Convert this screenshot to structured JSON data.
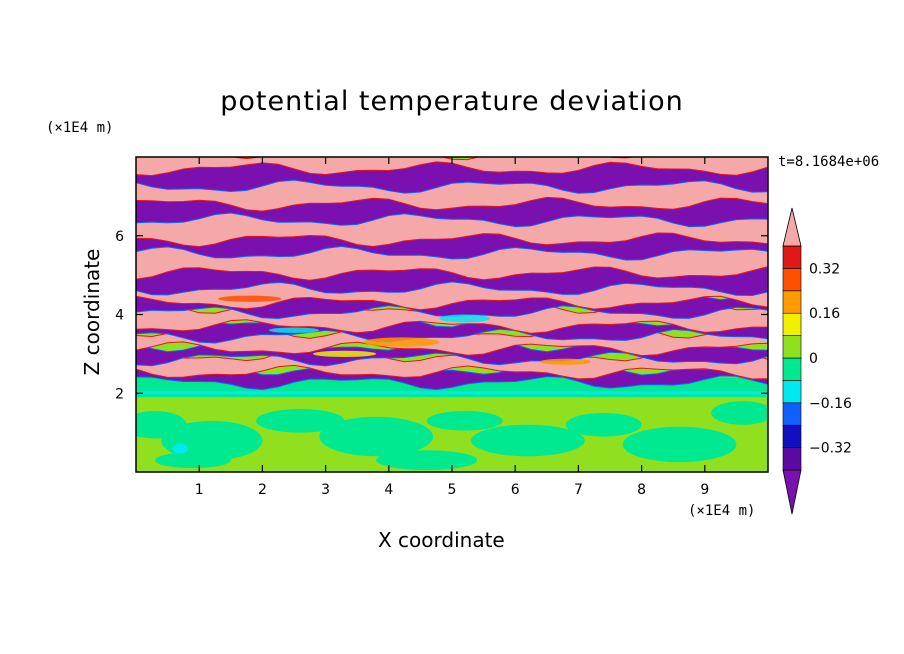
{
  "header": {
    "title": "potential temperature deviation",
    "time_label": "t=8.1684e+06"
  },
  "chart_data": {
    "type": "heatmap",
    "title": "potential temperature deviation",
    "xlabel": "X coordinate",
    "ylabel": "Z coordinate",
    "x_unit": "(×1E4 m)",
    "y_unit": "(×1E4 m)",
    "xlim": [
      0,
      10
    ],
    "ylim": [
      0,
      8
    ],
    "x_ticks": [
      "1",
      "2",
      "3",
      "4",
      "5",
      "6",
      "7",
      "8",
      "9"
    ],
    "y_ticks": [
      "2",
      "4",
      "6"
    ],
    "colorbar": {
      "levels": [
        -0.4,
        -0.32,
        -0.24,
        -0.16,
        -0.08,
        0,
        0.08,
        0.16,
        0.24,
        0.32,
        0.4
      ],
      "colors": [
        "#7a10b0",
        "#5a0aa0",
        "#1010c0",
        "#1060ff",
        "#00e8f0",
        "#00e890",
        "#90e020",
        "#f0f000",
        "#ff9a00",
        "#ff5000",
        "#e01818",
        "#f4a8a8"
      ],
      "tick_labels": [
        "0.32",
        "0.16",
        "0",
        "−0.16",
        "−0.32"
      ],
      "tick_values": [
        0.32,
        0.16,
        0,
        -0.16,
        -0.32
      ],
      "extend": "both"
    },
    "description_regions": [
      {
        "z_range": [
          0,
          1.9
        ],
        "value": 0.0
      },
      {
        "z_range": [
          1.9,
          2.4
        ],
        "value": -0.04
      },
      {
        "z_range": [
          2.4,
          8
        ],
        "value": "alternating bands ±0.4"
      }
    ]
  }
}
